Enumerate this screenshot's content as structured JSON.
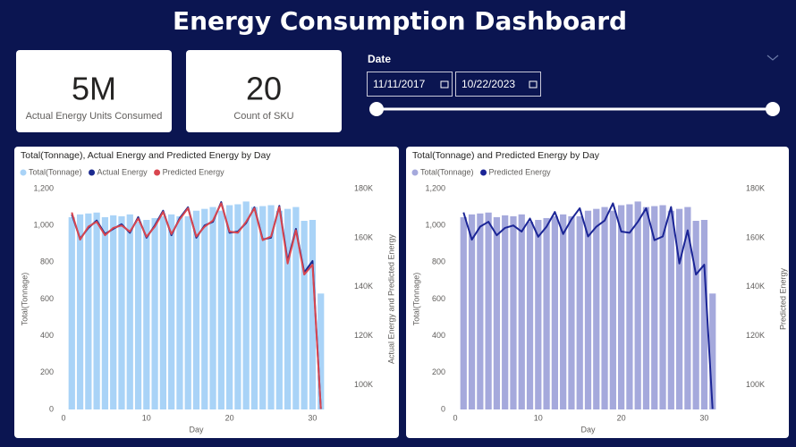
{
  "header": {
    "title": "Energy Consumption Dashboard"
  },
  "kpis": [
    {
      "value": "5M",
      "label": "Actual Energy Units Consumed"
    },
    {
      "value": "20",
      "label": "Count of SKU"
    }
  ],
  "date_filter": {
    "label": "Date",
    "start": "11/11/2017",
    "end": "10/22/2023"
  },
  "chart_data": [
    {
      "type": "combo",
      "title": "Total(Tonnage), Actual Energy and Predicted Energy by Day",
      "x_label": "Day",
      "y_label": "Total(Tonnage)",
      "y2_label": "Actual Energy and Predicted Energy",
      "x": [
        1,
        2,
        3,
        4,
        5,
        6,
        7,
        8,
        9,
        10,
        11,
        12,
        13,
        14,
        15,
        16,
        17,
        18,
        19,
        20,
        21,
        22,
        23,
        24,
        25,
        26,
        27,
        28,
        29,
        30,
        31
      ],
      "xlim": [
        0,
        32
      ],
      "xticks": [
        0,
        10,
        20,
        30
      ],
      "ylim": [
        0,
        1200
      ],
      "yticks": [
        0,
        200,
        400,
        600,
        800,
        {
          "value": 1000,
          "label": "1,000"
        },
        {
          "value": 1200,
          "label": "1,200"
        }
      ],
      "y2lim": [
        90000,
        180000
      ],
      "y2ticks": [
        {
          "value": 100000,
          "label": "100K"
        },
        {
          "value": 120000,
          "label": "120K"
        },
        {
          "value": 140000,
          "label": "140K"
        },
        {
          "value": 160000,
          "label": "160K"
        },
        {
          "value": 180000,
          "label": "180K"
        }
      ],
      "series": [
        {
          "name": "Total(Tonnage)",
          "type": "bar",
          "color": "#a9d3f7",
          "values": [
            1045,
            1060,
            1065,
            1070,
            1045,
            1055,
            1050,
            1060,
            1020,
            1030,
            1040,
            1050,
            1060,
            1050,
            1050,
            1080,
            1090,
            1100,
            1080,
            1110,
            1115,
            1130,
            1100,
            1105,
            1110,
            1080,
            1090,
            1100,
            1025,
            1030,
            630
          ]
        },
        {
          "name": "Actual Energy",
          "type": "line",
          "axis": "y2",
          "color": "#1b2a8f",
          "values": [
            169500,
            159600,
            164000,
            167000,
            161500,
            163600,
            165500,
            162000,
            168400,
            160000,
            165000,
            171000,
            161000,
            168000,
            172400,
            160000,
            165000,
            166500,
            174500,
            162000,
            162500,
            166000,
            172400,
            159300,
            160000,
            173000,
            150500,
            163600,
            145800,
            150500,
            90200
          ]
        },
        {
          "name": "Predicted Energy",
          "type": "line",
          "axis": "y2",
          "color": "#d9464f",
          "values": [
            170300,
            159200,
            164500,
            166500,
            161000,
            164000,
            165000,
            162500,
            167800,
            160400,
            164500,
            170500,
            161500,
            167500,
            172000,
            160500,
            164500,
            167000,
            174000,
            162500,
            162000,
            166500,
            172000,
            159000,
            160500,
            172500,
            149500,
            163000,
            145000,
            149000,
            90200
          ]
        }
      ]
    },
    {
      "type": "combo",
      "title": "Total(Tonnage) and Predicted Energy by Day",
      "x_label": "Day",
      "y_label": "Total(Tonnage)",
      "y2_label": "Predicted Energy",
      "x": [
        1,
        2,
        3,
        4,
        5,
        6,
        7,
        8,
        9,
        10,
        11,
        12,
        13,
        14,
        15,
        16,
        17,
        18,
        19,
        20,
        21,
        22,
        23,
        24,
        25,
        26,
        27,
        28,
        29,
        30,
        31
      ],
      "xlim": [
        0,
        32
      ],
      "xticks": [
        0,
        10,
        20,
        30
      ],
      "ylim": [
        0,
        1200
      ],
      "yticks": [
        0,
        200,
        400,
        600,
        800,
        {
          "value": 1000,
          "label": "1,000"
        },
        {
          "value": 1200,
          "label": "1,200"
        }
      ],
      "y2lim": [
        90000,
        180000
      ],
      "y2ticks": [
        {
          "value": 100000,
          "label": "100K"
        },
        {
          "value": 120000,
          "label": "120K"
        },
        {
          "value": 140000,
          "label": "140K"
        },
        {
          "value": 160000,
          "label": "160K"
        },
        {
          "value": 180000,
          "label": "180K"
        }
      ],
      "series": [
        {
          "name": "Total(Tonnage)",
          "type": "bar",
          "color": "#a5a9dc",
          "values": [
            1045,
            1060,
            1065,
            1070,
            1045,
            1055,
            1050,
            1060,
            1020,
            1030,
            1040,
            1050,
            1060,
            1050,
            1050,
            1080,
            1090,
            1100,
            1080,
            1110,
            1115,
            1130,
            1100,
            1105,
            1110,
            1080,
            1090,
            1100,
            1025,
            1030,
            630
          ]
        },
        {
          "name": "Predicted Energy",
          "type": "line",
          "axis": "y2",
          "color": "#1b2596",
          "values": [
            170300,
            159200,
            164500,
            166500,
            161000,
            164000,
            165000,
            162500,
            167800,
            160400,
            164500,
            170500,
            161500,
            167500,
            172000,
            160500,
            164500,
            167000,
            174000,
            162500,
            162000,
            166500,
            172000,
            159000,
            160500,
            172500,
            149500,
            163000,
            145000,
            149000,
            90200
          ]
        }
      ]
    }
  ]
}
